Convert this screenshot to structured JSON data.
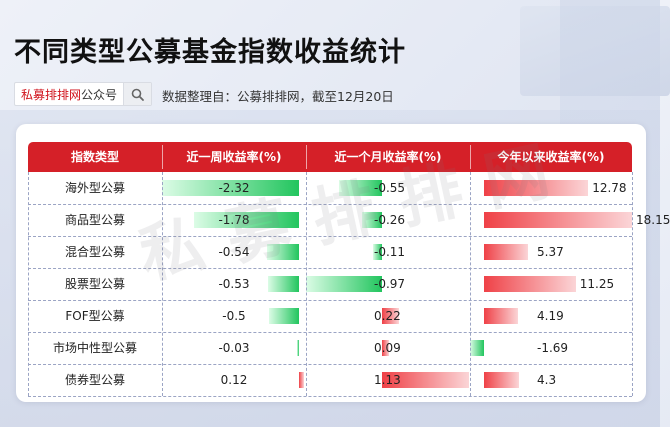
{
  "title": "不同类型公募基金指数收益统计",
  "search": {
    "brand": "私募排排网",
    "suffix": "公众号"
  },
  "source": "数据整理自：公募排排网，截至12月20日",
  "watermark": "私募排排网",
  "colors": {
    "header": "#d52028",
    "positive": "#ef4147",
    "negative": "#22c55e"
  },
  "chart_data": {
    "type": "table",
    "columns": [
      "指数类型",
      "近一周收益率(%)",
      "近一个月收益率(%)",
      "今年以来收益率(%)"
    ],
    "rows": [
      {
        "name": "海外型公募",
        "week": -2.32,
        "month": -0.55,
        "ytd": 12.78
      },
      {
        "name": "商品型公募",
        "week": -1.78,
        "month": -0.26,
        "ytd": 18.15
      },
      {
        "name": "混合型公募",
        "week": -0.54,
        "month": -0.11,
        "ytd": 5.37
      },
      {
        "name": "股票型公募",
        "week": -0.53,
        "month": -0.97,
        "ytd": 11.25
      },
      {
        "name": "FOF型公募",
        "week": -0.5,
        "month": 0.22,
        "ytd": 4.19
      },
      {
        "name": "市场中性型公募",
        "week": -0.03,
        "month": 0.09,
        "ytd": -1.69
      },
      {
        "name": "债券型公募",
        "week": 0.12,
        "month": 1.13,
        "ytd": 4.3
      }
    ]
  }
}
